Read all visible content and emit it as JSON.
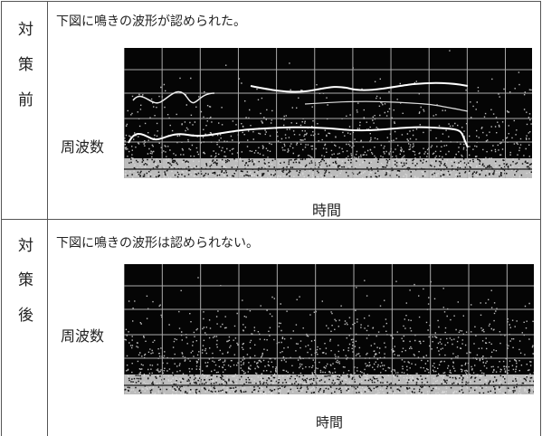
{
  "rows": [
    {
      "label": [
        "対",
        "策",
        "前"
      ],
      "caption": "下図に鳴きの波形が認められた。",
      "y_label": "周波数",
      "x_label": "時間"
    },
    {
      "label": [
        "対",
        "策",
        "後"
      ],
      "caption": "下図に鳴きの波形は認められない。",
      "y_label": "周波数",
      "x_label": "時間"
    }
  ]
}
